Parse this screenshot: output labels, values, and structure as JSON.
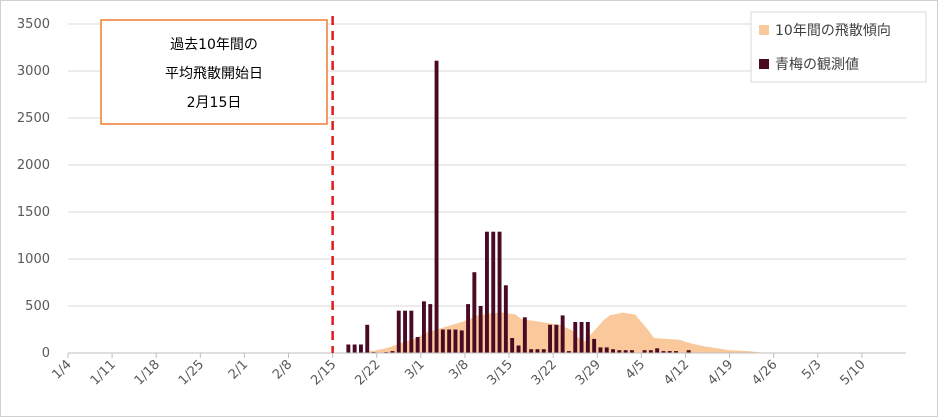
{
  "chart_data": {
    "type": "bar",
    "ylim": [
      0,
      3500
    ],
    "yticks": [
      0,
      500,
      1000,
      1500,
      2000,
      2500,
      3000,
      3500
    ],
    "x_range_days": [
      0,
      133
    ],
    "xticks": [
      {
        "day": 0,
        "label": "1/4"
      },
      {
        "day": 7,
        "label": "1/11"
      },
      {
        "day": 14,
        "label": "1/18"
      },
      {
        "day": 21,
        "label": "1/25"
      },
      {
        "day": 28,
        "label": "2/1"
      },
      {
        "day": 35,
        "label": "2/8"
      },
      {
        "day": 42,
        "label": "2/15"
      },
      {
        "day": 49,
        "label": "2/22"
      },
      {
        "day": 56,
        "label": "3/1"
      },
      {
        "day": 63,
        "label": "3/8"
      },
      {
        "day": 70,
        "label": "3/15"
      },
      {
        "day": 77,
        "label": "3/22"
      },
      {
        "day": 84,
        "label": "3/29"
      },
      {
        "day": 91,
        "label": "4/5"
      },
      {
        "day": 98,
        "label": "4/12"
      },
      {
        "day": 105,
        "label": "4/19"
      },
      {
        "day": 112,
        "label": "4/26"
      },
      {
        "day": 119,
        "label": "5/3"
      },
      {
        "day": 126,
        "label": "5/10"
      }
    ],
    "grid": "horizontal",
    "legend_position": "top-right",
    "reference_line": {
      "day": 42,
      "color": "#e31a1c"
    },
    "annotation_lines": [
      "過去10年間の",
      "平均飛散開始日",
      "2月15日"
    ],
    "series": [
      {
        "name": "10年間の飛散傾向",
        "type": "area",
        "color": "#f9c89b",
        "points": [
          {
            "day": 44,
            "value": 0
          },
          {
            "day": 47,
            "value": 10
          },
          {
            "day": 49,
            "value": 30
          },
          {
            "day": 51,
            "value": 60
          },
          {
            "day": 53,
            "value": 110
          },
          {
            "day": 55,
            "value": 150
          },
          {
            "day": 57,
            "value": 220
          },
          {
            "day": 59,
            "value": 260
          },
          {
            "day": 61,
            "value": 300
          },
          {
            "day": 63,
            "value": 340
          },
          {
            "day": 65,
            "value": 400
          },
          {
            "day": 67,
            "value": 420
          },
          {
            "day": 69,
            "value": 430
          },
          {
            "day": 71,
            "value": 410
          },
          {
            "day": 72,
            "value": 360
          },
          {
            "day": 74,
            "value": 340
          },
          {
            "day": 76,
            "value": 320
          },
          {
            "day": 78,
            "value": 300
          },
          {
            "day": 80,
            "value": 240
          },
          {
            "day": 81,
            "value": 160
          },
          {
            "day": 82,
            "value": 120
          },
          {
            "day": 83,
            "value": 200
          },
          {
            "day": 85,
            "value": 350
          },
          {
            "day": 86,
            "value": 400
          },
          {
            "day": 88,
            "value": 430
          },
          {
            "day": 90,
            "value": 410
          },
          {
            "day": 92,
            "value": 250
          },
          {
            "day": 93,
            "value": 160
          },
          {
            "day": 95,
            "value": 150
          },
          {
            "day": 97,
            "value": 140
          },
          {
            "day": 99,
            "value": 100
          },
          {
            "day": 101,
            "value": 70
          },
          {
            "day": 103,
            "value": 50
          },
          {
            "day": 105,
            "value": 30
          },
          {
            "day": 108,
            "value": 20
          },
          {
            "day": 110,
            "value": 5
          },
          {
            "day": 112,
            "value": 0
          }
        ]
      },
      {
        "name": "青梅の観測値",
        "type": "bar",
        "color": "#4a0a24",
        "points": [
          {
            "day": 44,
            "value": 90
          },
          {
            "day": 45,
            "value": 90
          },
          {
            "day": 46,
            "value": 90
          },
          {
            "day": 47,
            "value": 300
          },
          {
            "day": 48,
            "value": 10
          },
          {
            "day": 50,
            "value": 10
          },
          {
            "day": 51,
            "value": 20
          },
          {
            "day": 52,
            "value": 450
          },
          {
            "day": 53,
            "value": 450
          },
          {
            "day": 54,
            "value": 450
          },
          {
            "day": 55,
            "value": 170
          },
          {
            "day": 56,
            "value": 550
          },
          {
            "day": 57,
            "value": 520
          },
          {
            "day": 58,
            "value": 3110
          },
          {
            "day": 59,
            "value": 250
          },
          {
            "day": 60,
            "value": 250
          },
          {
            "day": 61,
            "value": 250
          },
          {
            "day": 62,
            "value": 240
          },
          {
            "day": 63,
            "value": 520
          },
          {
            "day": 64,
            "value": 860
          },
          {
            "day": 65,
            "value": 500
          },
          {
            "day": 66,
            "value": 1290
          },
          {
            "day": 67,
            "value": 1290
          },
          {
            "day": 68,
            "value": 1290
          },
          {
            "day": 69,
            "value": 720
          },
          {
            "day": 70,
            "value": 160
          },
          {
            "day": 71,
            "value": 80
          },
          {
            "day": 72,
            "value": 380
          },
          {
            "day": 73,
            "value": 40
          },
          {
            "day": 74,
            "value": 40
          },
          {
            "day": 75,
            "value": 40
          },
          {
            "day": 76,
            "value": 300
          },
          {
            "day": 77,
            "value": 300
          },
          {
            "day": 78,
            "value": 400
          },
          {
            "day": 79,
            "value": 20
          },
          {
            "day": 80,
            "value": 330
          },
          {
            "day": 81,
            "value": 330
          },
          {
            "day": 82,
            "value": 330
          },
          {
            "day": 83,
            "value": 150
          },
          {
            "day": 84,
            "value": 60
          },
          {
            "day": 85,
            "value": 60
          },
          {
            "day": 86,
            "value": 40
          },
          {
            "day": 87,
            "value": 30
          },
          {
            "day": 88,
            "value": 30
          },
          {
            "day": 89,
            "value": 30
          },
          {
            "day": 91,
            "value": 30
          },
          {
            "day": 92,
            "value": 30
          },
          {
            "day": 93,
            "value": 50
          },
          {
            "day": 94,
            "value": 20
          },
          {
            "day": 95,
            "value": 20
          },
          {
            "day": 96,
            "value": 20
          },
          {
            "day": 98,
            "value": 30
          }
        ]
      }
    ]
  }
}
